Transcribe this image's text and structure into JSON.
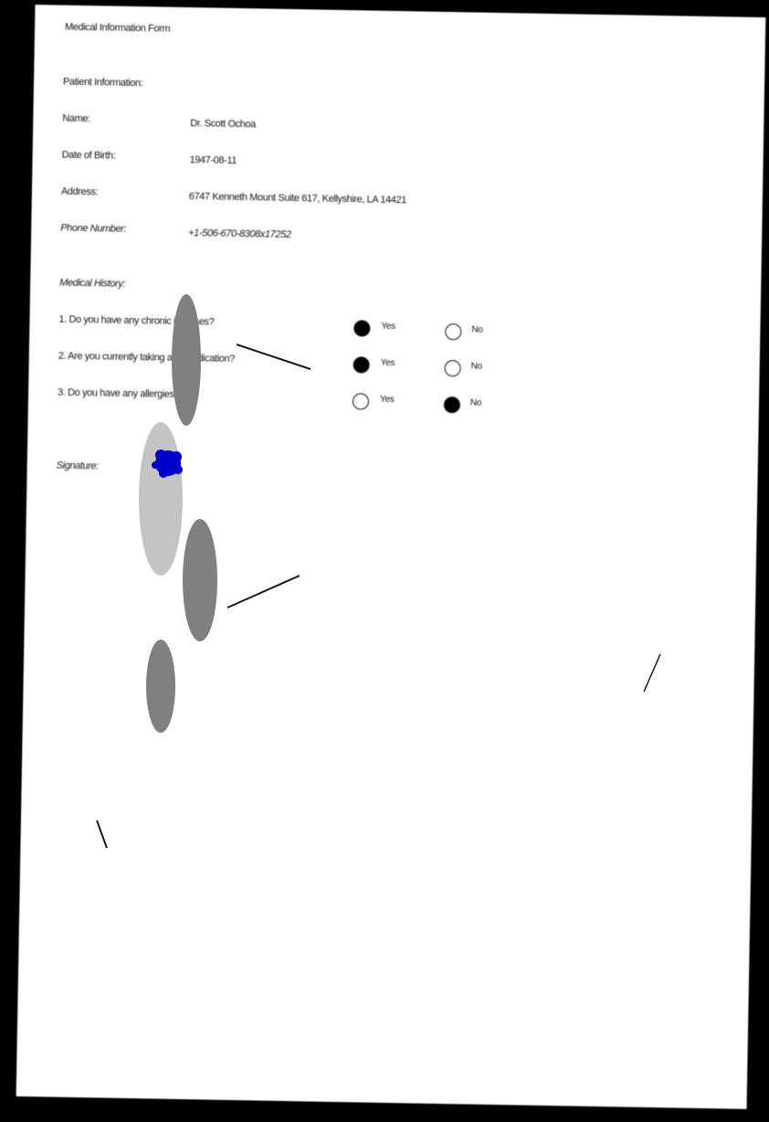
{
  "form": {
    "title": "Medical Information Form",
    "patient_section": "Patient Information:",
    "fields": [
      {
        "label": "Name:",
        "value": "Dr. Scott Ochoa"
      },
      {
        "label": "Date of Birth:",
        "value": "1947-08-11"
      },
      {
        "label": "Address:",
        "value": "6747 Kenneth Mount Suite 617, Kellyshire, LA 14421"
      },
      {
        "label": "Phone Number:",
        "value": "+1-506-670-8308x17252"
      }
    ],
    "history_section": "Medical History:",
    "questions": [
      {
        "text": "1. Do you have any chronic illnesses?",
        "yes_label": "Yes",
        "no_label": "No",
        "answer": "Yes"
      },
      {
        "text": "2. Are you currently taking any medication?",
        "yes_label": "Yes",
        "no_label": "No",
        "answer": "Yes"
      },
      {
        "text": "3. Do you have any allergies?",
        "yes_label": "Yes",
        "no_label": "No",
        "answer": "No"
      }
    ],
    "signature_label": "Signature:"
  },
  "colors": {
    "ink": "#111111",
    "ink_stamp": "#0000cc",
    "smudge_dark": "#808080",
    "smudge_light": "#c4c4c4",
    "background": "#000000",
    "paper": "#ffffff"
  }
}
